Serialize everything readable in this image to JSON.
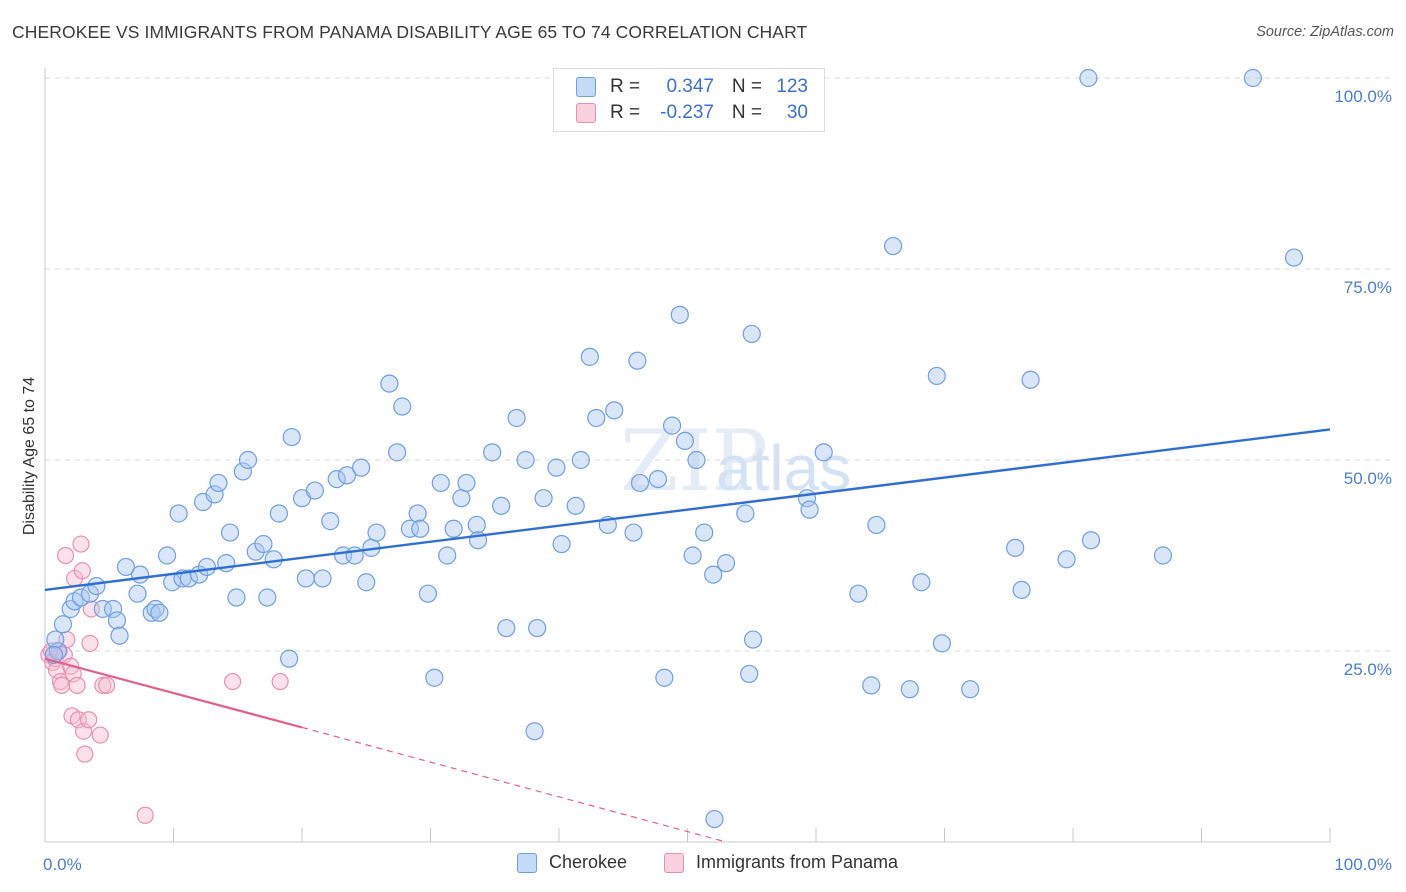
{
  "header": {
    "title": "CHEROKEE VS IMMIGRANTS FROM PANAMA DISABILITY AGE 65 TO 74 CORRELATION CHART",
    "source": "Source: ZipAtlas.com"
  },
  "watermark": "ZIPatlas",
  "legend_top": {
    "rows": [
      {
        "r_label": "R =",
        "r_value": "0.347",
        "n_label": "N =",
        "n_value": "123"
      },
      {
        "r_label": "R =",
        "r_value": "-0.237",
        "n_label": "N =",
        "n_value": "30"
      }
    ]
  },
  "legend_bottom": {
    "items": [
      "Cherokee",
      "Immigrants from Panama"
    ]
  },
  "colors": {
    "blue_fill": "#a8c8f0",
    "blue_stroke": "#6f9fe0",
    "blue_line": "#2f6fd0",
    "pink_fill": "#f6bcd0",
    "pink_stroke": "#e890b0",
    "pink_line": "#e0608e",
    "grid": "#d8d8d8",
    "tick_text": "#4a7fcf"
  },
  "chart_data": {
    "type": "scatter",
    "title": "CHEROKEE VS IMMIGRANTS FROM PANAMA DISABILITY AGE 65 TO 74 CORRELATION CHART",
    "xlabel": "",
    "ylabel": "Disability Age 65 to 74",
    "xlim": [
      0,
      100
    ],
    "ylim": [
      0,
      100
    ],
    "x_tick_labels": [
      "0.0%",
      "100.0%"
    ],
    "y_tick_labels": [
      "25.0%",
      "50.0%",
      "75.0%",
      "100.0%"
    ],
    "y_ticks": [
      25,
      50,
      75,
      100
    ],
    "grid": true,
    "legend_position": "top-center",
    "series": [
      {
        "name": "Cherokee",
        "color": "#a8c8f0",
        "r": 0.347,
        "n": 123,
        "trendline": {
          "x": [
            0,
            100
          ],
          "y": [
            33.0,
            54.0
          ],
          "style": "solid"
        },
        "points": [
          [
            1.0,
            25.0
          ],
          [
            0.8,
            26.5
          ],
          [
            0.7,
            24.5
          ],
          [
            1.4,
            28.5
          ],
          [
            2.0,
            30.5
          ],
          [
            2.3,
            31.5
          ],
          [
            2.8,
            32.0
          ],
          [
            3.5,
            32.5
          ],
          [
            4.0,
            33.5
          ],
          [
            4.5,
            30.5
          ],
          [
            5.3,
            30.5
          ],
          [
            5.6,
            29.0
          ],
          [
            5.8,
            27.0
          ],
          [
            6.3,
            36.0
          ],
          [
            7.4,
            35.0
          ],
          [
            7.2,
            32.5
          ],
          [
            8.3,
            30.0
          ],
          [
            8.6,
            30.5
          ],
          [
            8.9,
            30.0
          ],
          [
            9.5,
            37.5
          ],
          [
            9.9,
            34.0
          ],
          [
            10.4,
            43.0
          ],
          [
            10.7,
            34.5
          ],
          [
            11.2,
            34.5
          ],
          [
            12.0,
            35.0
          ],
          [
            12.3,
            44.5
          ],
          [
            12.6,
            36.0
          ],
          [
            13.2,
            45.5
          ],
          [
            13.5,
            47.0
          ],
          [
            14.1,
            36.5
          ],
          [
            14.4,
            40.5
          ],
          [
            14.9,
            32.0
          ],
          [
            15.4,
            48.5
          ],
          [
            15.8,
            50.0
          ],
          [
            16.4,
            38.0
          ],
          [
            17.0,
            39.0
          ],
          [
            17.3,
            32.0
          ],
          [
            17.8,
            37.0
          ],
          [
            18.2,
            43.0
          ],
          [
            19.0,
            24.0
          ],
          [
            19.2,
            53.0
          ],
          [
            20.0,
            45.0
          ],
          [
            20.3,
            34.5
          ],
          [
            21.0,
            46.0
          ],
          [
            21.6,
            34.5
          ],
          [
            22.2,
            42.0
          ],
          [
            22.7,
            47.5
          ],
          [
            23.2,
            37.5
          ],
          [
            23.5,
            48.0
          ],
          [
            24.1,
            37.5
          ],
          [
            24.6,
            49.0
          ],
          [
            25.0,
            34.0
          ],
          [
            25.4,
            38.5
          ],
          [
            25.8,
            40.5
          ],
          [
            26.8,
            60.0
          ],
          [
            27.4,
            51.0
          ],
          [
            27.8,
            57.0
          ],
          [
            28.4,
            41.0
          ],
          [
            29.0,
            43.0
          ],
          [
            29.2,
            41.0
          ],
          [
            29.8,
            32.5
          ],
          [
            30.3,
            21.5
          ],
          [
            30.8,
            47.0
          ],
          [
            31.3,
            37.5
          ],
          [
            31.8,
            41.0
          ],
          [
            32.4,
            45.0
          ],
          [
            32.8,
            47.0
          ],
          [
            33.6,
            41.5
          ],
          [
            33.7,
            39.5
          ],
          [
            34.8,
            51.0
          ],
          [
            35.5,
            44.0
          ],
          [
            35.9,
            28.0
          ],
          [
            36.7,
            55.5
          ],
          [
            37.4,
            50.0
          ],
          [
            38.1,
            14.5
          ],
          [
            38.3,
            28.0
          ],
          [
            38.8,
            45.0
          ],
          [
            39.8,
            49.0
          ],
          [
            40.2,
            39.0
          ],
          [
            41.3,
            44.0
          ],
          [
            41.7,
            50.0
          ],
          [
            42.4,
            63.5
          ],
          [
            42.9,
            55.5
          ],
          [
            43.8,
            41.5
          ],
          [
            44.3,
            56.5
          ],
          [
            45.8,
            40.5
          ],
          [
            46.1,
            63.0
          ],
          [
            46.3,
            47.0
          ],
          [
            47.7,
            47.5
          ],
          [
            48.2,
            21.5
          ],
          [
            48.8,
            54.5
          ],
          [
            49.4,
            69.0
          ],
          [
            49.8,
            52.5
          ],
          [
            50.4,
            37.5
          ],
          [
            50.7,
            50.0
          ],
          [
            51.3,
            40.5
          ],
          [
            52.0,
            35.0
          ],
          [
            52.1,
            3.0
          ],
          [
            53.0,
            36.5
          ],
          [
            54.5,
            43.0
          ],
          [
            54.8,
            22.0
          ],
          [
            55.0,
            66.5
          ],
          [
            55.1,
            26.5
          ],
          [
            59.3,
            45.0
          ],
          [
            59.5,
            43.5
          ],
          [
            60.6,
            51.0
          ],
          [
            63.3,
            32.5
          ],
          [
            64.3,
            20.5
          ],
          [
            64.7,
            41.5
          ],
          [
            66.0,
            78.0
          ],
          [
            67.3,
            20.0
          ],
          [
            68.2,
            34.0
          ],
          [
            69.4,
            61.0
          ],
          [
            69.8,
            26.0
          ],
          [
            72.0,
            20.0
          ],
          [
            75.5,
            38.5
          ],
          [
            76.0,
            33.0
          ],
          [
            76.7,
            60.5
          ],
          [
            79.5,
            37.0
          ],
          [
            81.4,
            39.5
          ],
          [
            81.2,
            100.0
          ],
          [
            87.0,
            37.5
          ],
          [
            94.0,
            100.0
          ],
          [
            97.2,
            76.5
          ]
        ]
      },
      {
        "name": "Immigrants from Panama",
        "color": "#f6bcd0",
        "r": -0.237,
        "n": 30,
        "trendline": {
          "x": [
            0,
            20
          ],
          "y": [
            24.0,
            15.0
          ],
          "style": "solid",
          "extension": {
            "x": [
              20,
              53
            ],
            "y": [
              15.0,
              0.0
            ],
            "style": "dashed"
          }
        },
        "points": [
          [
            0.3,
            24.5
          ],
          [
            0.5,
            25.0
          ],
          [
            0.6,
            23.5
          ],
          [
            0.8,
            24.0
          ],
          [
            0.9,
            22.5
          ],
          [
            1.1,
            25.0
          ],
          [
            1.2,
            21.0
          ],
          [
            1.3,
            20.5
          ],
          [
            1.5,
            24.5
          ],
          [
            1.6,
            37.5
          ],
          [
            1.7,
            26.5
          ],
          [
            2.0,
            23.0
          ],
          [
            2.2,
            22.0
          ],
          [
            2.1,
            16.5
          ],
          [
            2.3,
            34.5
          ],
          [
            2.5,
            20.5
          ],
          [
            2.6,
            16.0
          ],
          [
            2.8,
            39.0
          ],
          [
            2.9,
            35.5
          ],
          [
            3.0,
            14.5
          ],
          [
            3.1,
            11.5
          ],
          [
            3.4,
            16.0
          ],
          [
            3.5,
            26.0
          ],
          [
            3.6,
            30.5
          ],
          [
            4.3,
            14.0
          ],
          [
            4.5,
            20.5
          ],
          [
            4.8,
            20.5
          ],
          [
            7.8,
            3.5
          ],
          [
            14.6,
            21.0
          ],
          [
            18.3,
            21.0
          ]
        ]
      }
    ]
  }
}
